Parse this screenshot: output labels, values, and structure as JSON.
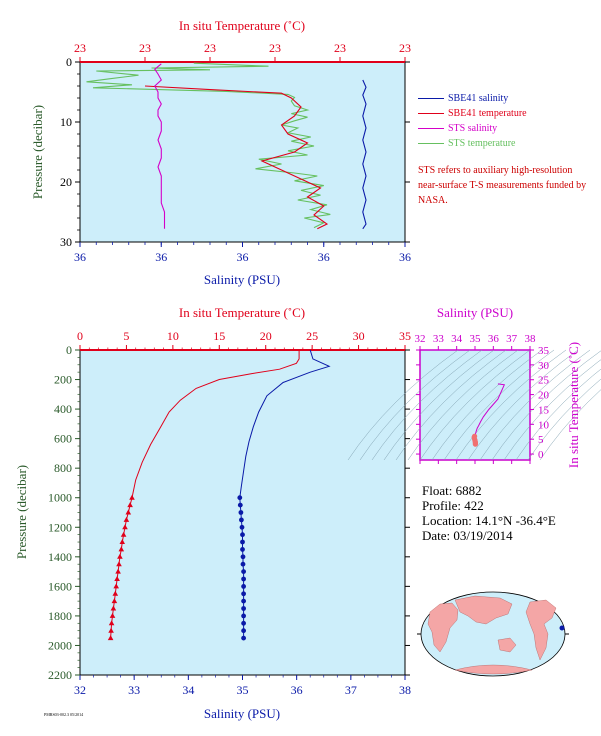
{
  "colors": {
    "plot_bg": "#cdeefa",
    "temperature": "#e0001a",
    "salinity": "#0a1aa8",
    "sts_salinity": "#d400c8",
    "sts_temperature": "#66c060",
    "pressure_axis": "#2a5a2a",
    "ts_axis": "#cc00cc",
    "note": "#cc0000"
  },
  "legend": {
    "items": [
      {
        "label": "SBE41 salinity",
        "color": "#0a1aa8"
      },
      {
        "label": "SBE41 temperature",
        "color": "#e0001a"
      },
      {
        "label": "STS salinity",
        "color": "#d400c8"
      },
      {
        "label": "STS temperature",
        "color": "#66c060"
      }
    ],
    "note": "STS refers to auxiliary high-resolution near-surface T-S measurements funded by NASA."
  },
  "float_info": {
    "float": "Float:  6882",
    "profile": "Profile:  422",
    "location": "Location:  14.1°N  -36.4°E",
    "date": "Date:  03/19/2014"
  },
  "footer_code": "PMRS03-002.3 05/2014",
  "chart_data": [
    {
      "type": "line",
      "name": "near-surface profile",
      "title": "",
      "top_xlabel": "In situ Temperature (˚C)",
      "bottom_xlabel": "Salinity (PSU)",
      "ylabel": "Pressure (decibar)",
      "top_tick_labels": [
        "23",
        "23",
        "23",
        "23",
        "23",
        "23"
      ],
      "bottom_tick_labels": [
        "36",
        "36",
        "36",
        "36",
        "36"
      ],
      "ylim": [
        30,
        0
      ],
      "y_ticks": [
        0,
        10,
        20,
        30
      ],
      "x_range": [
        0,
        1
      ],
      "series": [
        {
          "name": "STS temperature",
          "points": [
            [
              0.35,
              0.2
            ],
            [
              0.58,
              0.7
            ],
            [
              0.22,
              1.0
            ],
            [
              0.4,
              1.3
            ],
            [
              0.05,
              1.5
            ],
            [
              0.18,
              2.2
            ],
            [
              0.09,
              2.8
            ],
            [
              0.02,
              3.3
            ],
            [
              0.16,
              3.8
            ],
            [
              0.04,
              4.3
            ],
            [
              0.45,
              4.9
            ],
            [
              0.64,
              5.4
            ],
            [
              0.66,
              5.9
            ],
            [
              0.65,
              6.5
            ],
            [
              0.66,
              7.3
            ],
            [
              0.7,
              8.0
            ],
            [
              0.65,
              8.6
            ],
            [
              0.7,
              9.2
            ],
            [
              0.66,
              9.8
            ],
            [
              0.62,
              10.5
            ],
            [
              0.67,
              11.0
            ],
            [
              0.64,
              11.8
            ],
            [
              0.71,
              12.5
            ],
            [
              0.65,
              13.2
            ],
            [
              0.72,
              14.0
            ],
            [
              0.64,
              14.8
            ],
            [
              0.7,
              15.5
            ],
            [
              0.55,
              16.2
            ],
            [
              0.62,
              17.0
            ],
            [
              0.54,
              17.8
            ],
            [
              0.66,
              18.5
            ],
            [
              0.73,
              19.0
            ],
            [
              0.66,
              19.8
            ],
            [
              0.75,
              20.6
            ],
            [
              0.68,
              21.4
            ],
            [
              0.74,
              22.2
            ],
            [
              0.67,
              23.0
            ],
            [
              0.76,
              23.8
            ],
            [
              0.71,
              24.6
            ],
            [
              0.77,
              25.4
            ],
            [
              0.69,
              26.0
            ],
            [
              0.75,
              26.8
            ],
            [
              0.72,
              27.6
            ]
          ]
        },
        {
          "name": "SBE41 temperature",
          "points": [
            [
              0.2,
              4.0
            ],
            [
              0.4,
              4.6
            ],
            [
              0.62,
              5.2
            ],
            [
              0.65,
              6.0
            ],
            [
              0.68,
              7.5
            ],
            [
              0.66,
              9.0
            ],
            [
              0.62,
              10.5
            ],
            [
              0.64,
              12.0
            ],
            [
              0.7,
              13.5
            ],
            [
              0.66,
              15.0
            ],
            [
              0.56,
              16.5
            ],
            [
              0.62,
              18.0
            ],
            [
              0.68,
              19.5
            ],
            [
              0.74,
              21.0
            ],
            [
              0.7,
              22.5
            ],
            [
              0.75,
              24.0
            ],
            [
              0.72,
              25.5
            ],
            [
              0.76,
              27.0
            ],
            [
              0.73,
              27.8
            ]
          ]
        },
        {
          "name": "STS salinity",
          "points": [
            [
              0.25,
              0.3
            ],
            [
              0.23,
              1.2
            ],
            [
              0.24,
              2.0
            ],
            [
              0.25,
              3.0
            ],
            [
              0.23,
              4.0
            ],
            [
              0.24,
              5.0
            ],
            [
              0.24,
              6.0
            ],
            [
              0.25,
              7.0
            ],
            [
              0.24,
              8.0
            ],
            [
              0.24,
              9.0
            ],
            [
              0.25,
              10.0
            ],
            [
              0.25,
              11.5
            ],
            [
              0.24,
              13.0
            ],
            [
              0.25,
              14.5
            ],
            [
              0.25,
              16.0
            ],
            [
              0.24,
              17.5
            ],
            [
              0.25,
              19.0
            ],
            [
              0.25,
              20.5
            ],
            [
              0.25,
              22.0
            ],
            [
              0.25,
              23.5
            ],
            [
              0.26,
              25.0
            ],
            [
              0.26,
              26.5
            ],
            [
              0.26,
              27.8
            ]
          ]
        },
        {
          "name": "SBE41 salinity",
          "points": [
            [
              0.87,
              3.0
            ],
            [
              0.88,
              4.2
            ],
            [
              0.87,
              5.5
            ],
            [
              0.88,
              7.0
            ],
            [
              0.87,
              9.0
            ],
            [
              0.88,
              11.0
            ],
            [
              0.87,
              13.0
            ],
            [
              0.88,
              15.0
            ],
            [
              0.87,
              17.0
            ],
            [
              0.88,
              19.0
            ],
            [
              0.87,
              21.0
            ],
            [
              0.88,
              23.0
            ],
            [
              0.87,
              25.0
            ],
            [
              0.88,
              27.0
            ],
            [
              0.87,
              27.8
            ]
          ]
        }
      ]
    },
    {
      "type": "line",
      "name": "full-depth profile",
      "title": "",
      "top_xlabel": "In situ Temperature (˚C)",
      "bottom_xlabel": "Salinity (PSU)",
      "ylabel": "Pressure (decibar)",
      "temperature_ticks": [
        0,
        5,
        10,
        15,
        20,
        25,
        30,
        35
      ],
      "salinity_ticks": [
        32,
        33,
        34,
        35,
        36,
        37,
        38
      ],
      "pressure_ticks": [
        0,
        200,
        400,
        600,
        800,
        1000,
        1200,
        1400,
        1600,
        1800,
        2000,
        2200
      ],
      "xlim_temperature": [
        0,
        35
      ],
      "xlim_salinity": [
        32,
        38
      ],
      "ylim": [
        2200,
        0
      ],
      "series": [
        {
          "name": "SBE41 temperature",
          "points": [
            [
              23.6,
              0
            ],
            [
              23.6,
              60
            ],
            [
              23.3,
              90
            ],
            [
              21.5,
              130
            ],
            [
              18.5,
              160
            ],
            [
              15.0,
              200
            ],
            [
              12.5,
              260
            ],
            [
              10.8,
              340
            ],
            [
              9.6,
              420
            ],
            [
              8.7,
              520
            ],
            [
              7.6,
              640
            ],
            [
              6.7,
              760
            ],
            [
              6.0,
              880
            ],
            [
              5.6,
              1000
            ],
            [
              5.4,
              1050
            ],
            [
              5.2,
              1100
            ],
            [
              5.0,
              1150
            ],
            [
              4.85,
              1200
            ],
            [
              4.7,
              1250
            ],
            [
              4.55,
              1300
            ],
            [
              4.45,
              1350
            ],
            [
              4.3,
              1400
            ],
            [
              4.2,
              1450
            ],
            [
              4.1,
              1500
            ],
            [
              4.0,
              1550
            ],
            [
              3.9,
              1600
            ],
            [
              3.8,
              1650
            ],
            [
              3.7,
              1700
            ],
            [
              3.6,
              1750
            ],
            [
              3.5,
              1800
            ],
            [
              3.4,
              1850
            ],
            [
              3.35,
              1900
            ],
            [
              3.3,
              1950
            ]
          ]
        },
        {
          "name": "SBE41 salinity",
          "points": [
            [
              36.25,
              0
            ],
            [
              36.3,
              60
            ],
            [
              36.6,
              110
            ],
            [
              36.25,
              150
            ],
            [
              35.75,
              220
            ],
            [
              35.45,
              310
            ],
            [
              35.3,
              420
            ],
            [
              35.2,
              520
            ],
            [
              35.12,
              620
            ],
            [
              35.06,
              720
            ],
            [
              35.02,
              820
            ],
            [
              34.98,
              920
            ],
            [
              34.95,
              1000
            ],
            [
              34.96,
              1050
            ],
            [
              34.97,
              1100
            ],
            [
              34.98,
              1150
            ],
            [
              34.99,
              1200
            ],
            [
              35.0,
              1250
            ],
            [
              35.0,
              1300
            ],
            [
              35.0,
              1350
            ],
            [
              35.01,
              1400
            ],
            [
              35.01,
              1450
            ],
            [
              35.02,
              1500
            ],
            [
              35.02,
              1550
            ],
            [
              35.02,
              1600
            ],
            [
              35.02,
              1650
            ],
            [
              35.02,
              1700
            ],
            [
              35.02,
              1750
            ],
            [
              35.02,
              1800
            ],
            [
              35.02,
              1850
            ],
            [
              35.02,
              1900
            ],
            [
              35.02,
              1950
            ]
          ]
        }
      ],
      "marker_from_pressure": 1000
    },
    {
      "type": "line",
      "name": "T-S diagram",
      "title": "",
      "top_xlabel": "Salinity (PSU)",
      "right_ylabel": "In situ Temperature (˚C)",
      "x_ticks": [
        32,
        33,
        34,
        35,
        36,
        37,
        38
      ],
      "y_ticks": [
        0,
        5,
        10,
        15,
        20,
        25,
        30,
        35
      ],
      "xlim": [
        32,
        38
      ],
      "ylim": [
        -2,
        35
      ],
      "series": [
        {
          "name": "T-S curve",
          "points": [
            [
              36.25,
              23.6
            ],
            [
              36.6,
              23.3
            ],
            [
              36.25,
              18.5
            ],
            [
              35.75,
              15.0
            ],
            [
              35.45,
              12.5
            ],
            [
              35.3,
              10.8
            ],
            [
              35.2,
              9.6
            ],
            [
              35.12,
              8.7
            ],
            [
              35.06,
              7.6
            ],
            [
              35.02,
              6.7
            ],
            [
              34.98,
              6.0
            ],
            [
              34.95,
              5.6
            ],
            [
              34.98,
              5.0
            ],
            [
              35.0,
              4.6
            ],
            [
              35.01,
              4.2
            ],
            [
              35.02,
              3.9
            ],
            [
              35.02,
              3.6
            ],
            [
              35.02,
              3.3
            ]
          ]
        }
      ]
    }
  ]
}
